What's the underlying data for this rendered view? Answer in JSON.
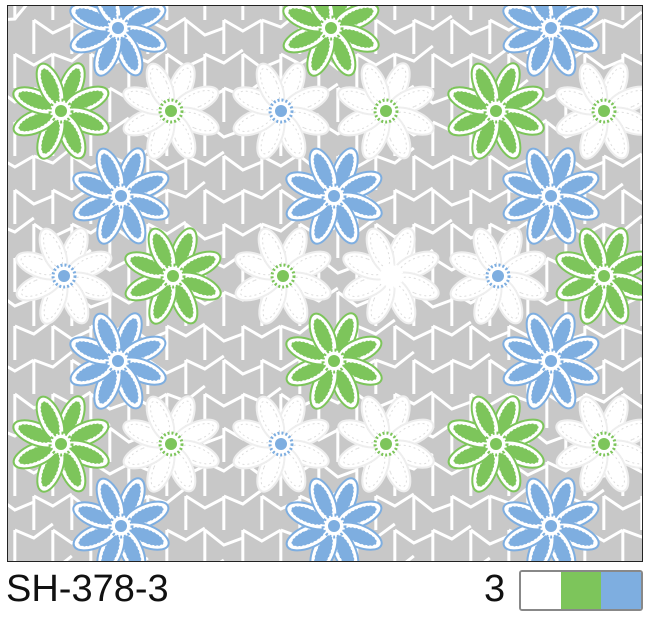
{
  "design": {
    "code": "SH-378-3",
    "color_count": "3",
    "colorways": [
      "#ffffff",
      "#7dc55b",
      "#7eaee0"
    ],
    "background": "#c8c8c8",
    "flower_colors": {
      "green": "#7dc55b",
      "blue": "#7eaee0",
      "white": "#ffffff"
    }
  }
}
